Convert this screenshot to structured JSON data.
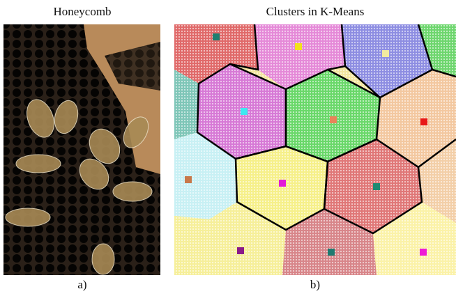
{
  "figure": {
    "panels": [
      {
        "title": "Honeycomb",
        "label": "a)"
      },
      {
        "title": "Clusters in K-Means",
        "label": "b)"
      }
    ]
  }
}
